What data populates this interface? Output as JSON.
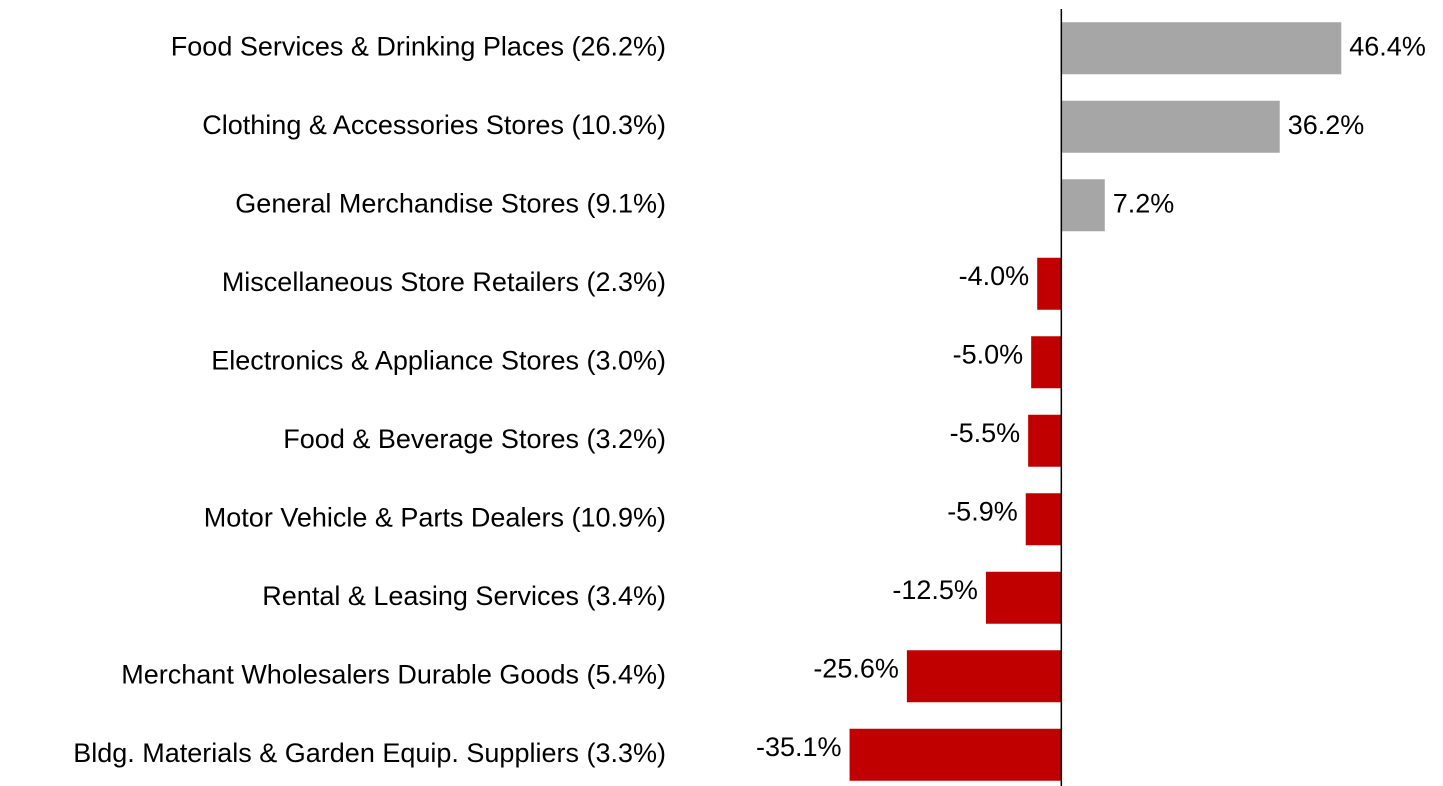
{
  "chart_data": {
    "type": "hbar",
    "categories": [
      "Food Services & Drinking Places (26.2%)",
      "Clothing & Accessories Stores (10.3%)",
      "General Merchandise Stores (9.1%)",
      "Miscellaneous Store Retailers (2.3%)",
      "Electronics & Appliance Stores (3.0%)",
      "Food & Beverage Stores (3.2%)",
      "Motor Vehicle & Parts Dealers (10.9%)",
      "Rental & Leasing Services (3.4%)",
      "Merchant Wholesalers Durable Goods (5.4%)",
      "Bldg. Materials & Garden Equip. Suppliers (3.3%)"
    ],
    "values": [
      46.4,
      36.2,
      7.2,
      -4.0,
      -5.0,
      -5.5,
      -5.9,
      -12.5,
      -25.6,
      -35.1
    ],
    "value_labels": [
      "46.4%",
      "36.2%",
      "7.2%",
      "-4.0%",
      "-5.0%",
      "-5.5%",
      "-5.9%",
      "-12.5%",
      "-25.6%",
      "-35.1%"
    ],
    "colors": [
      "#a6a6a6",
      "#a6a6a6",
      "#a6a6a6",
      "#c00000",
      "#c00000",
      "#c00000",
      "#c00000",
      "#c00000",
      "#c00000",
      "#c00000"
    ],
    "xlim": [
      -40,
      50
    ]
  }
}
